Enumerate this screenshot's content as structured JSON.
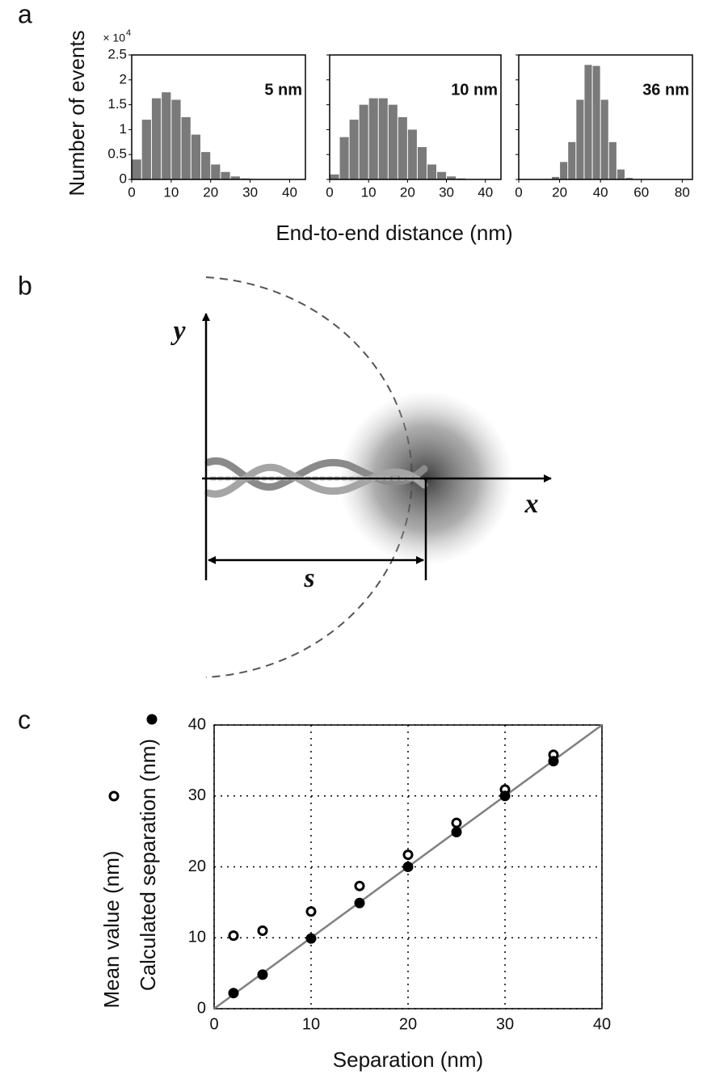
{
  "panel_labels": [
    "a",
    "b",
    "c"
  ],
  "panel_a_xlabel": "End-to-end distance (nm)",
  "diagram": {
    "y_axis": "y",
    "x_axis": "x",
    "distance": "s"
  },
  "chart_data": [
    {
      "type": "histogram",
      "ylabel": "Number of events",
      "scale_label": "× 10",
      "scale_exponent": "4",
      "annotation": "5 nm",
      "bins": [
        0,
        2.5,
        5,
        7.5,
        10,
        12.5,
        15,
        17.5,
        20,
        22.5,
        25,
        27.5,
        30
      ],
      "values": [
        0.4,
        1.2,
        1.63,
        1.75,
        1.6,
        1.25,
        0.9,
        0.55,
        0.3,
        0.15,
        0.06,
        0.02
      ],
      "color": "#7a7a7a",
      "xlim": [
        0,
        44
      ],
      "ylim": [
        0,
        2.5
      ],
      "xticks": [
        0,
        10,
        20,
        30,
        40
      ],
      "yticks": [
        0,
        0.5,
        1,
        1.5,
        2,
        2.5
      ],
      "ytick_labels": true
    },
    {
      "type": "histogram",
      "annotation": "10 nm",
      "bins": [
        0,
        2.5,
        5,
        7.5,
        10,
        12.5,
        15,
        17.5,
        20,
        22.5,
        25,
        27.5,
        30,
        32.5,
        35
      ],
      "values": [
        0.1,
        0.85,
        1.2,
        1.5,
        1.63,
        1.63,
        1.5,
        1.25,
        1.0,
        0.65,
        0.3,
        0.15,
        0.06,
        0.02
      ],
      "color": "#7a7a7a",
      "xlim": [
        0,
        44
      ],
      "ylim": [
        0,
        2.5
      ],
      "xticks": [
        0,
        10,
        20,
        30,
        40
      ],
      "yticks": [
        0,
        0.5,
        1,
        1.5,
        2,
        2.5
      ],
      "ytick_labels": false
    },
    {
      "type": "histogram",
      "annotation": "36 nm",
      "bins": [
        12,
        16,
        20,
        24,
        28,
        32,
        36,
        40,
        44,
        48,
        52,
        56
      ],
      "values": [
        0.01,
        0.05,
        0.35,
        0.75,
        1.6,
        2.3,
        2.28,
        1.6,
        0.75,
        0.2,
        0.03
      ],
      "color": "#7a7a7a",
      "xlim": [
        0,
        85
      ],
      "ylim": [
        0,
        2.5
      ],
      "xticks": [
        0,
        20,
        40,
        60,
        80
      ],
      "yticks": [
        0,
        0.5,
        1,
        1.5,
        2,
        2.5
      ],
      "ytick_labels": false
    },
    {
      "type": "scatter",
      "xlabel": "Separation (nm)",
      "x": [
        2,
        5,
        10,
        15,
        20,
        25,
        30,
        35
      ],
      "series": [
        {
          "name": "Mean value (nm)",
          "marker": "open",
          "color": "#000000",
          "values": [
            10.3,
            11,
            13.7,
            17.3,
            21.7,
            26.2,
            30.9,
            35.8
          ]
        },
        {
          "name": "Calculated separation (nm)",
          "marker": "filled",
          "color": "#000000",
          "values": [
            2.2,
            4.8,
            9.9,
            14.9,
            20,
            24.9,
            30,
            34.9
          ]
        }
      ],
      "fit_line": {
        "x": [
          0,
          40
        ],
        "values": [
          0,
          40
        ],
        "color": "#808080"
      },
      "xlim": [
        0,
        40
      ],
      "ylim": [
        0,
        40
      ],
      "xticks": [
        0,
        10,
        20,
        30,
        40
      ],
      "yticks": [
        0,
        10,
        20,
        30,
        40
      ],
      "grid": true
    }
  ]
}
